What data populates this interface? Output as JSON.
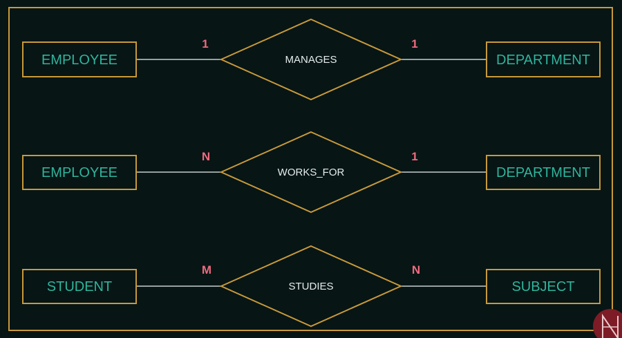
{
  "relationships": [
    {
      "left_entity": "EMPLOYEE",
      "relationship": "MANAGES",
      "right_entity": "DEPARTMENT",
      "left_cardinality": "1",
      "right_cardinality": "1"
    },
    {
      "left_entity": "EMPLOYEE",
      "relationship": "WORKS_FOR",
      "right_entity": "DEPARTMENT",
      "left_cardinality": "N",
      "right_cardinality": "1"
    },
    {
      "left_entity": "STUDENT",
      "relationship": "STUDIES",
      "right_entity": "SUBJECT",
      "left_cardinality": "M",
      "right_cardinality": "N"
    }
  ],
  "colors": {
    "background": "#071515",
    "frame": "#c99a3a",
    "entity_text": "#2fb59c",
    "relationship_text": "#e6ecec",
    "cardinality": "#f06a7e",
    "connector": "#c8d0d0"
  },
  "corner_logo": "logo-badge-icon"
}
